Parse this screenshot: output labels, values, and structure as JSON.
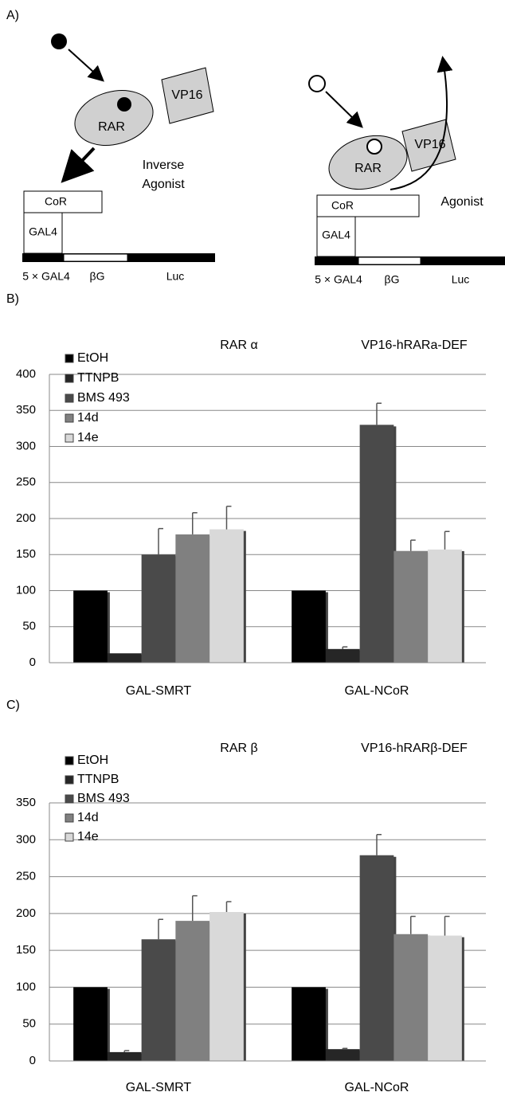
{
  "panels": {
    "a": "A)",
    "b": "B)",
    "c": "C)"
  },
  "diagram": {
    "left": {
      "vp16": "VP16",
      "rar": "RAR",
      "cor": "CoR",
      "gal4": "GAL4",
      "label_line1": "Inverse",
      "label_line2": "Agonist",
      "site": "5 × GAL4",
      "bg": "βG",
      "luc": "Luc"
    },
    "right": {
      "vp16": "VP16",
      "rar": "RAR",
      "cor": "CoR",
      "gal4": "GAL4",
      "label": "Agonist",
      "site": "5 × GAL4",
      "bg": "βG",
      "luc": "Luc"
    }
  },
  "chart_data": [
    {
      "type": "bar",
      "title": "RAR α",
      "subtitle": "VP16-hRARa-DEF",
      "categories": [
        "GAL-SMRT",
        "GAL-NCoR"
      ],
      "series": [
        {
          "name": "EtOH",
          "color": "#000000",
          "values": [
            100,
            100
          ],
          "errors": [
            null,
            null
          ]
        },
        {
          "name": "TTNPB",
          "color": "#262626",
          "values": [
            13,
            19
          ],
          "errors": [
            null,
            3
          ]
        },
        {
          "name": "BMS 493",
          "color": "#4a4a4a",
          "values": [
            150,
            330
          ],
          "errors": [
            36,
            30
          ]
        },
        {
          "name": "14d",
          "color": "#808080",
          "values": [
            178,
            155
          ],
          "errors": [
            30,
            15
          ]
        },
        {
          "name": "14e",
          "color": "#d9d9d9",
          "values": [
            185,
            157
          ],
          "errors": [
            32,
            25
          ]
        }
      ],
      "ylim": [
        0,
        400
      ],
      "yticks": [
        0,
        50,
        100,
        150,
        200,
        250,
        300,
        350,
        400
      ],
      "grid": true,
      "legend": "top-left"
    },
    {
      "type": "bar",
      "title": "RAR β",
      "subtitle": "VP16-hRARβ-DEF",
      "categories": [
        "GAL-SMRT",
        "GAL-NCoR"
      ],
      "series": [
        {
          "name": "EtOH",
          "color": "#000000",
          "values": [
            100,
            100
          ],
          "errors": [
            null,
            null
          ]
        },
        {
          "name": "TTNPB",
          "color": "#262626",
          "values": [
            12,
            16
          ],
          "errors": [
            2,
            1
          ]
        },
        {
          "name": "BMS 493",
          "color": "#4a4a4a",
          "values": [
            165,
            279
          ],
          "errors": [
            27,
            28
          ]
        },
        {
          "name": "14d",
          "color": "#808080",
          "values": [
            190,
            172
          ],
          "errors": [
            34,
            24
          ]
        },
        {
          "name": "14e",
          "color": "#d9d9d9",
          "values": [
            202,
            170
          ],
          "errors": [
            14,
            26
          ]
        }
      ],
      "ylim": [
        0,
        350
      ],
      "yticks": [
        0,
        50,
        100,
        150,
        200,
        250,
        300,
        350
      ],
      "grid": true,
      "legend": "top-left"
    }
  ]
}
